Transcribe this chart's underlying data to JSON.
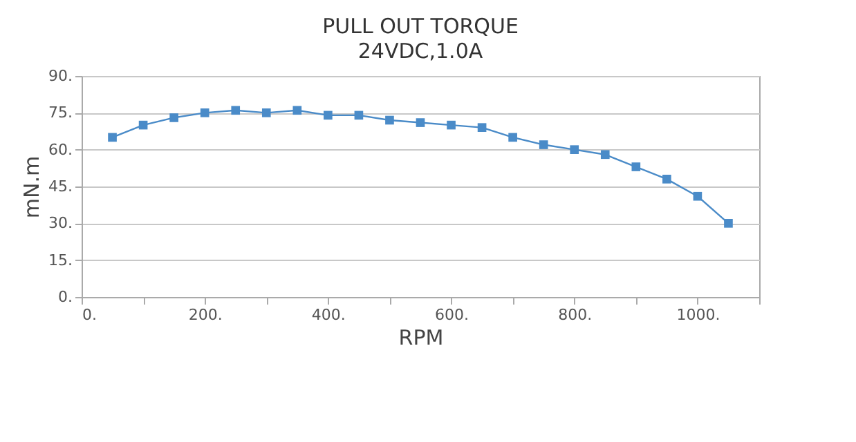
{
  "chart_data": {
    "type": "line",
    "title": "PULL OUT TORQUE",
    "subtitle": "24VDC,1.0A",
    "xlabel": "RPM",
    "ylabel": "mN.m",
    "x": [
      50,
      100,
      150,
      200,
      250,
      300,
      350,
      400,
      450,
      500,
      550,
      600,
      650,
      700,
      750,
      800,
      850,
      900,
      950,
      1000,
      1050
    ],
    "series": [
      {
        "color": "#4a8bc8",
        "values": [
          65,
          70,
          73,
          75,
          76,
          75,
          76,
          74,
          74,
          72,
          71,
          70,
          69,
          65,
          62,
          60,
          58,
          53,
          48,
          41,
          30
        ]
      }
    ],
    "xlim": [
      0,
      1100
    ],
    "xticks": [
      {
        "value": 0,
        "label": "0."
      },
      {
        "value": 100,
        "label": null
      },
      {
        "value": 200,
        "label": "200."
      },
      {
        "value": 300,
        "label": null
      },
      {
        "value": 400,
        "label": "400."
      },
      {
        "value": 500,
        "label": null
      },
      {
        "value": 600,
        "label": "600."
      },
      {
        "value": 700,
        "label": null
      },
      {
        "value": 800,
        "label": "800."
      },
      {
        "value": 900,
        "label": null
      },
      {
        "value": 1000,
        "label": "1000."
      },
      {
        "value": 1100,
        "label": null
      }
    ],
    "ylim": [
      0,
      90
    ],
    "yticks": [
      {
        "value": 0,
        "label": "0."
      },
      {
        "value": 15,
        "label": "15."
      },
      {
        "value": 30,
        "label": "30."
      },
      {
        "value": 45,
        "label": "45."
      },
      {
        "value": 60,
        "label": "60."
      },
      {
        "value": 75,
        "label": "75."
      },
      {
        "value": 90,
        "label": "90."
      }
    ],
    "grid": "y",
    "marker": "square",
    "line_style": "solid"
  }
}
